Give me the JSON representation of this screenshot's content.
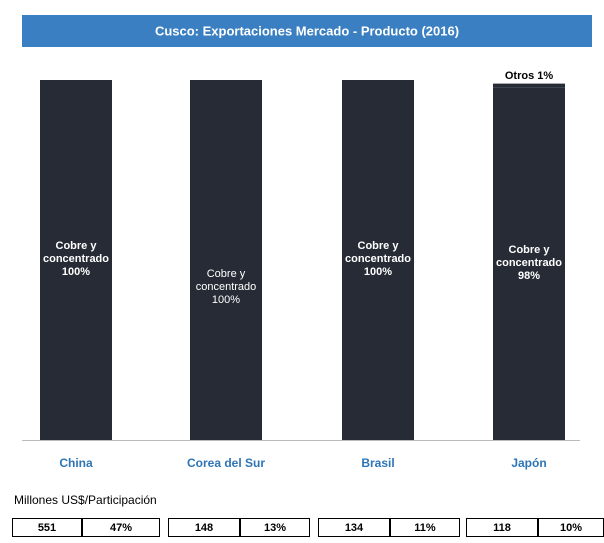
{
  "chart_data": {
    "type": "bar",
    "title": "Cusco: Exportaciones Mercado - Producto (2016)",
    "categories": [
      "China",
      "Corea del Sur",
      "Brasil",
      "Japón"
    ],
    "series": [
      {
        "name": "Cobre y concentrado",
        "color": "#262b35",
        "values": [
          100,
          100,
          100,
          98
        ],
        "value_labels": [
          "100%",
          "100%",
          "100%",
          "98%"
        ]
      },
      {
        "name": "Otros",
        "color": "#262b35",
        "values": [
          null,
          null,
          null,
          1
        ],
        "value_labels": [
          null,
          null,
          null,
          "1%"
        ]
      }
    ],
    "ylim": [
      0,
      100
    ],
    "stacked": true
  },
  "table": {
    "caption": "Millones US$/Participación",
    "cells": [
      "551",
      "47%",
      "148",
      "13%",
      "134",
      "11%",
      "118",
      "10%"
    ]
  }
}
